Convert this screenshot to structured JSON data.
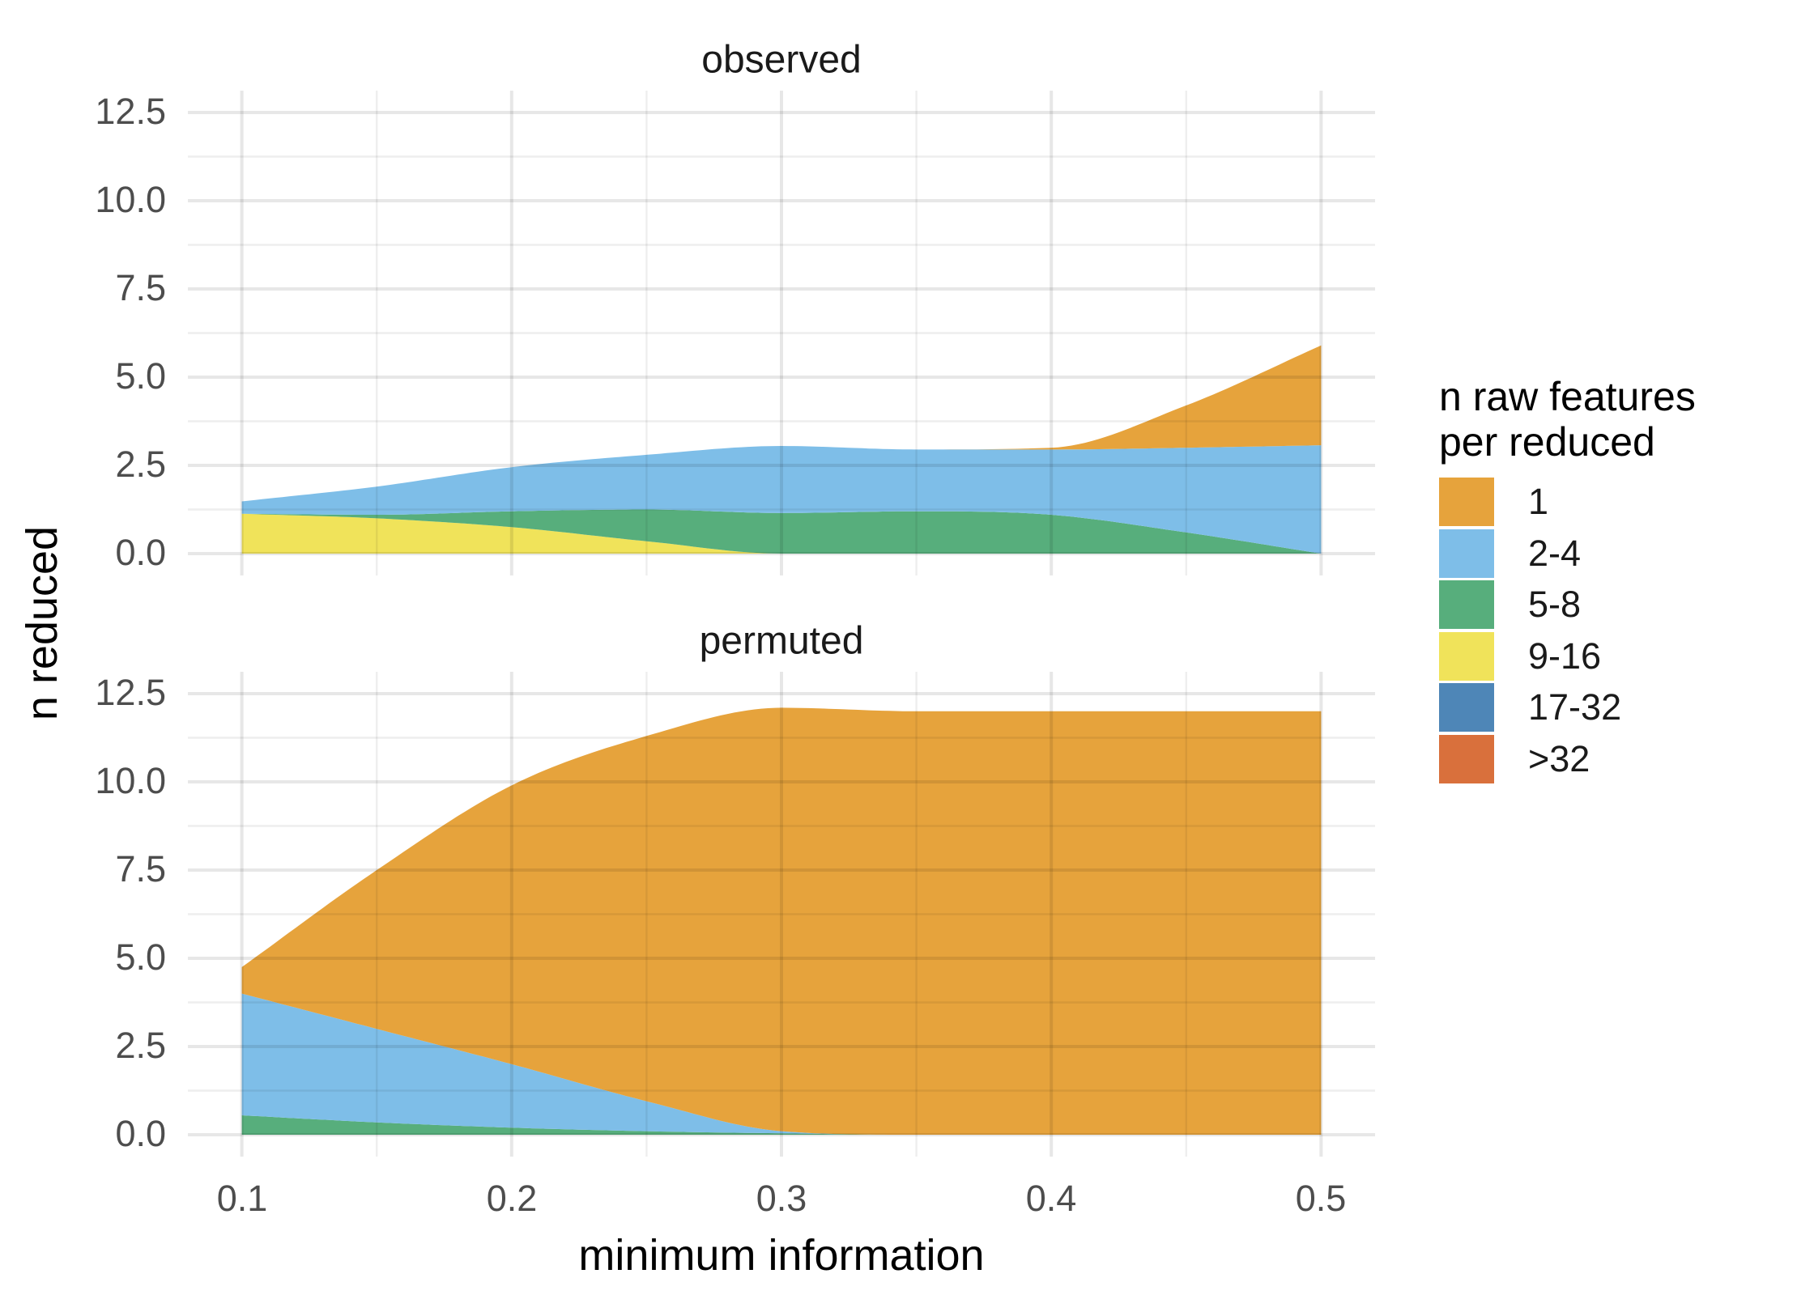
{
  "figure": {
    "background": "#ffffff",
    "x_axis_title": "minimum information",
    "y_axis_title": "n reduced"
  },
  "facets": [
    {
      "label": "observed"
    },
    {
      "label": "permuted"
    }
  ],
  "axes": {
    "x_tick_labels": [
      "0.1",
      "0.2",
      "0.3",
      "0.4",
      "0.5"
    ],
    "x_tick_values": [
      0.1,
      0.2,
      0.3,
      0.4,
      0.5
    ],
    "x_minor_values": [
      0.15,
      0.25,
      0.35,
      0.45
    ],
    "y_tick_labels": [
      "0.0",
      "2.5",
      "5.0",
      "7.5",
      "10.0",
      "12.5"
    ],
    "y_tick_values": [
      0,
      2.5,
      5,
      7.5,
      10,
      12.5
    ],
    "y_minor_values": [
      1.25,
      3.75,
      6.25,
      8.75,
      11.25
    ],
    "tick_label_color": "#4d4d4d",
    "grid_color": "#e7e7e7"
  },
  "legend": {
    "title_lines": [
      "n raw features",
      "per reduced"
    ],
    "items": [
      {
        "label": "1",
        "color": "#E6A33C"
      },
      {
        "label": "2-4",
        "color": "#7EBEE8"
      },
      {
        "label": "5-8",
        "color": "#57AE7C"
      },
      {
        "label": "9-16",
        "color": "#F0E35A"
      },
      {
        "label": "17-32",
        "color": "#4E86B7"
      },
      {
        "label": ">32",
        "color": "#D9703C"
      }
    ]
  },
  "chart_data": [
    {
      "type": "area",
      "stacked": true,
      "stack_order": "bottom_to_top",
      "title": "observed",
      "xlabel": "minimum information",
      "ylabel": "n reduced",
      "xlim": [
        0.1,
        0.5
      ],
      "ylim": [
        0,
        12.5
      ],
      "x": [
        0.1,
        0.15,
        0.2,
        0.25,
        0.3,
        0.35,
        0.4,
        0.45,
        0.5
      ],
      "series": [
        {
          "name": "9-16",
          "color": "#F0E35A",
          "values": [
            1.13,
            1.0,
            0.75,
            0.35,
            0,
            0,
            0,
            0,
            0
          ]
        },
        {
          "name": "5-8",
          "color": "#57AE7C",
          "values": [
            0,
            0.1,
            0.45,
            0.9,
            1.15,
            1.2,
            1.1,
            0.6,
            0
          ]
        },
        {
          "name": "2-4",
          "color": "#7EBEE8",
          "values": [
            0.35,
            0.8,
            1.25,
            1.55,
            1.9,
            1.75,
            1.85,
            2.4,
            3.07
          ]
        },
        {
          "name": "1",
          "color": "#E6A33C",
          "values": [
            0,
            0,
            0,
            0,
            0,
            0,
            0.05,
            1.2,
            2.83
          ]
        }
      ]
    },
    {
      "type": "area",
      "stacked": true,
      "stack_order": "bottom_to_top",
      "title": "permuted",
      "xlabel": "minimum information",
      "ylabel": "n reduced",
      "xlim": [
        0.1,
        0.5
      ],
      "ylim": [
        0,
        12.5
      ],
      "x": [
        0.1,
        0.15,
        0.2,
        0.25,
        0.3,
        0.35,
        0.4,
        0.45,
        0.5
      ],
      "series": [
        {
          "name": "5-8",
          "color": "#57AE7C",
          "values": [
            0.55,
            0.35,
            0.2,
            0.1,
            0.04,
            0,
            0,
            0,
            0
          ]
        },
        {
          "name": "2-4",
          "color": "#7EBEE8",
          "values": [
            3.45,
            2.65,
            1.8,
            0.85,
            0.06,
            0,
            0,
            0,
            0
          ]
        },
        {
          "name": "1",
          "color": "#E6A33C",
          "values": [
            0.75,
            4.5,
            7.9,
            10.35,
            12.0,
            12.0,
            12.0,
            12.0,
            12.0
          ]
        }
      ]
    }
  ]
}
